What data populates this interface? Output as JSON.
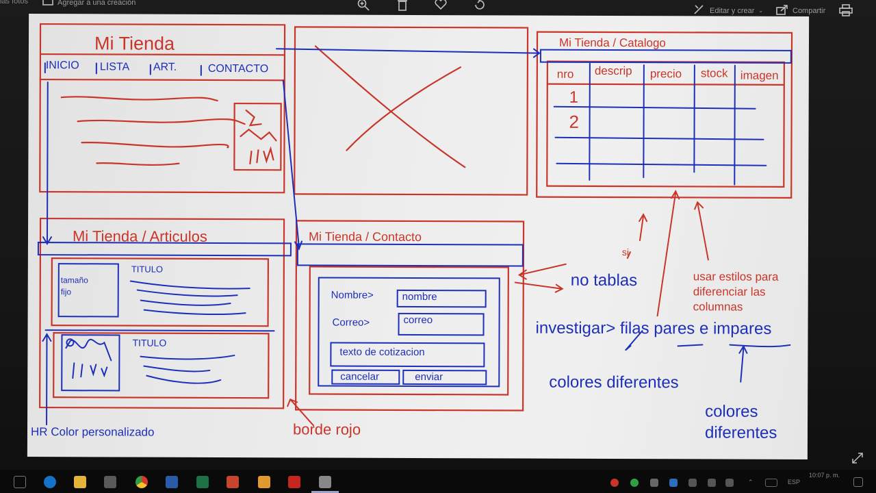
{
  "viewer": {
    "album_label": "las fotos",
    "add_to_creation": "Agregar a una creación",
    "edit_create": "Editar y crear",
    "share": "Compartir"
  },
  "board": {
    "panel1": {
      "title": "Mi Tienda",
      "nav": [
        "INICIO",
        "LISTA",
        "ART.",
        "CONTACTO"
      ]
    },
    "panel3": {
      "title": "Mi Tienda  / Catalogo",
      "columns": [
        "nro",
        "descrip",
        "precio",
        "stock",
        "imagen"
      ],
      "rows": [
        "1",
        "2"
      ]
    },
    "panel4": {
      "title": "Mi Tienda / Articulos",
      "card1_box": "tamaño\nfijo",
      "card1_title": "TITULO",
      "card2_title": "TITULO"
    },
    "panel5": {
      "title": "Mi Tienda / Contacto",
      "name_label": "Nombre>",
      "name_field": "nombre",
      "email_label": "Correo>",
      "email_field": "correo",
      "quote_field": "texto de cotizacion",
      "cancel": "cancelar",
      "send": "enviar"
    },
    "notes": {
      "hr": "HR Color personalizado",
      "red_border": "borde rojo",
      "no_tables": "no tablas",
      "si": "si",
      "styles": "usar estilos para\ndiferenciar las\ncolumnas",
      "investigate": "investigar> filas pares e impares",
      "colors1": "colores diferentes",
      "colors2": "colores\ndiferentes"
    }
  },
  "taskbar": {
    "lang": "ESP",
    "time": "10:07 p. m."
  }
}
